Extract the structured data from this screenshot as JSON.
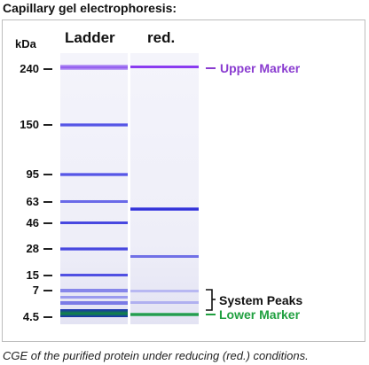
{
  "title": "Capillary gel electrophoresis:",
  "unit": "kDa",
  "lanes": [
    {
      "name": "Ladder"
    },
    {
      "name": "red."
    }
  ],
  "ticks": [
    "240",
    "150",
    "95",
    "63",
    "46",
    "28",
    "15",
    "7",
    "4.5"
  ],
  "annotations": {
    "upper_marker": "Upper Marker",
    "system_peaks": "System Peaks",
    "lower_marker": "Lower Marker"
  },
  "colors": {
    "band_blue": "#2828d8",
    "band_violet": "#8a3cf0",
    "upper_marker": "#8a3cd0",
    "lower_marker": "#20a040",
    "system_peaks": "#111111"
  },
  "caption": "CGE of the purified protein under reducing (red.) conditions."
}
